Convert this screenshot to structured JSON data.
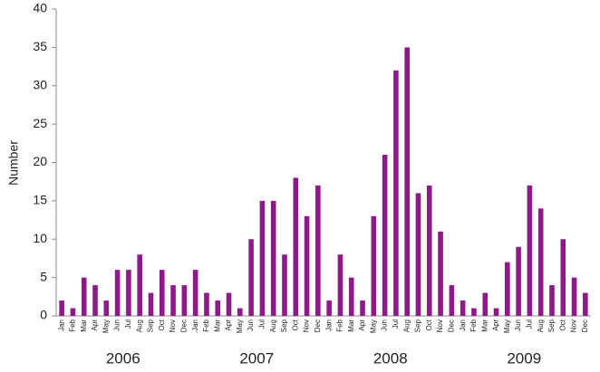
{
  "chart_data": {
    "type": "bar",
    "y_label": "Number",
    "categories": [
      "Jan",
      "Feb",
      "Mar",
      "Apr",
      "May",
      "Jun",
      "Jul",
      "Aug",
      "Sep",
      "Oct",
      "Nov",
      "Dec",
      "Jan",
      "Feb",
      "Mar",
      "Apr",
      "May",
      "Jun",
      "Jul",
      "Aug",
      "Sep",
      "Oct",
      "Nov",
      "Dec",
      "Jan",
      "Feb",
      "Mar",
      "Apr",
      "May",
      "Jun",
      "Jul",
      "Aug",
      "Sep",
      "Oct",
      "Nov",
      "Dec",
      "Jan",
      "Feb",
      "Mar",
      "Apr",
      "May",
      "Jun",
      "Jul",
      "Aug",
      "Sep",
      "Oct",
      "Nov",
      "Dec"
    ],
    "groups": [
      "2006",
      "2007",
      "2008",
      "2009"
    ],
    "values": [
      2,
      1,
      5,
      4,
      2,
      6,
      6,
      8,
      3,
      6,
      4,
      4,
      6,
      3,
      2,
      3,
      1,
      10,
      15,
      15,
      8,
      18,
      13,
      17,
      2,
      8,
      5,
      2,
      13,
      21,
      32,
      35,
      16,
      17,
      11,
      4,
      2,
      1,
      3,
      1,
      7,
      9,
      17,
      14,
      4,
      10,
      5,
      3
    ],
    "color": "#8e1a8a",
    "ylim": [
      0,
      40
    ],
    "yticks": [
      0,
      5,
      10,
      15,
      20,
      25,
      30,
      35,
      40
    ],
    "grid": false
  }
}
